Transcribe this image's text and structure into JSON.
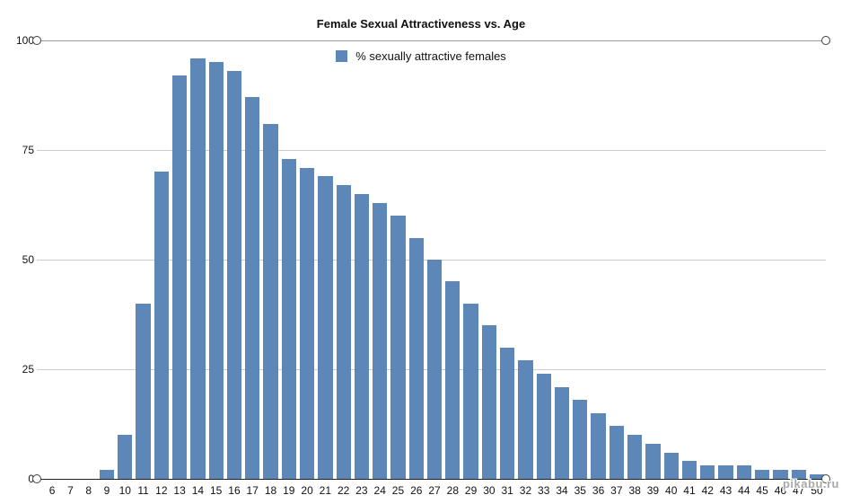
{
  "watermark": "pikabu.ru",
  "chart_data": {
    "type": "bar",
    "title": "Female Sexual Attractiveness vs. Age",
    "legend": [
      "% sexually attractive females"
    ],
    "legend_position": "top-center",
    "xlabel": "",
    "ylabel": "",
    "ylim": [
      0,
      100
    ],
    "yticks": [
      0,
      25,
      50,
      75,
      100
    ],
    "grid": true,
    "bar_color": "#5d87b9",
    "categories": [
      "6",
      "7",
      "8",
      "9",
      "10",
      "11",
      "12",
      "13",
      "14",
      "15",
      "16",
      "17",
      "18",
      "19",
      "20",
      "21",
      "22",
      "23",
      "24",
      "25",
      "26",
      "27",
      "28",
      "29",
      "30",
      "31",
      "32",
      "33",
      "34",
      "35",
      "36",
      "37",
      "38",
      "39",
      "40",
      "41",
      "42",
      "43",
      "44",
      "45",
      "46",
      "47",
      "50"
    ],
    "values": [
      0,
      0,
      0,
      2,
      10,
      40,
      70,
      92,
      96,
      95,
      93,
      87,
      81,
      73,
      71,
      69,
      67,
      65,
      63,
      60,
      55,
      50,
      45,
      40,
      35,
      30,
      27,
      24,
      21,
      18,
      15,
      12,
      10,
      8,
      6,
      4,
      3,
      3,
      3,
      2,
      2,
      2,
      1
    ]
  }
}
